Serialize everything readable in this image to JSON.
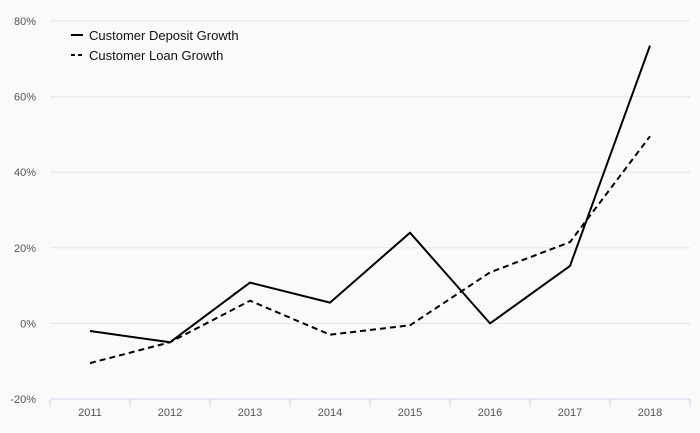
{
  "chart_data": {
    "type": "line",
    "categories": [
      "2011",
      "2012",
      "2013",
      "2014",
      "2015",
      "2016",
      "2017",
      "2018"
    ],
    "ylim": [
      -20,
      80
    ],
    "yticks": [
      -20,
      0,
      20,
      40,
      60,
      80
    ],
    "ytick_labels": [
      "-20%",
      "0%",
      "20%",
      "40%",
      "60%",
      "80%"
    ],
    "grid": "horizontal",
    "legend_position": "top-left",
    "series": [
      {
        "name": "Customer Deposit Growth",
        "style": "solid",
        "color": "#000000",
        "values": [
          -2,
          -5,
          10.8,
          5.5,
          24,
          0,
          15.2,
          73.5
        ]
      },
      {
        "name": "Customer Loan Growth",
        "style": "dashed",
        "color": "#000000",
        "values": [
          -10.5,
          -5,
          6,
          -3,
          -0.5,
          13.5,
          21.5,
          49.5
        ]
      }
    ],
    "colors": {
      "background": "#fafafa",
      "grid": "#e6e6e6",
      "axis": "#ccd6eb"
    }
  }
}
